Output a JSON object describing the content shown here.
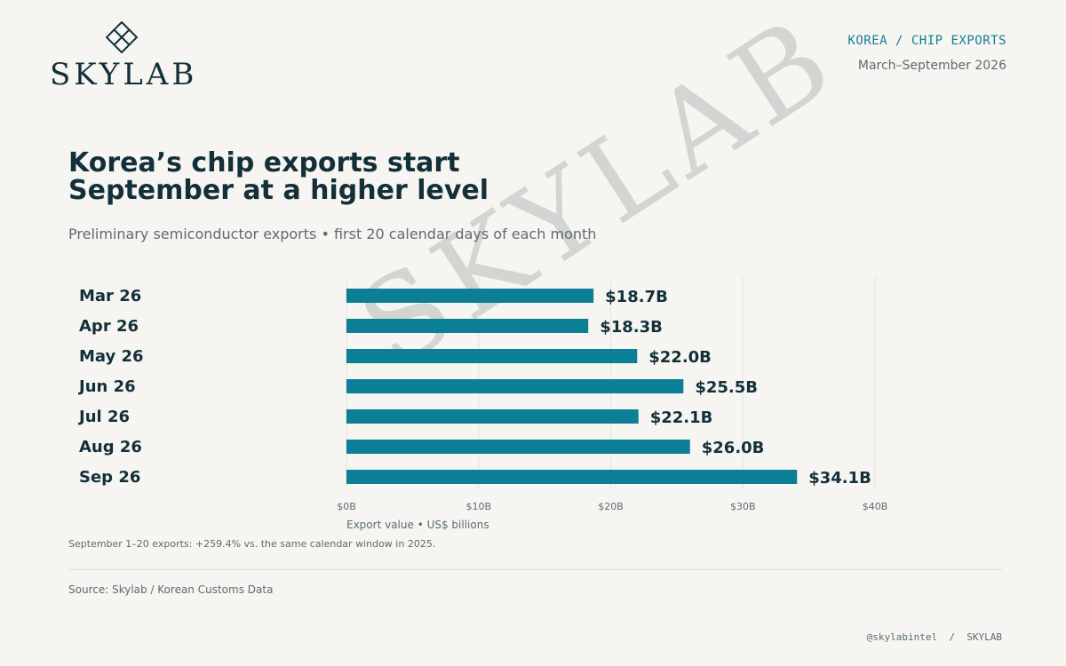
{
  "brand": {
    "name": "SKYLAB",
    "logo_icon": "diamond-lattice-icon"
  },
  "header": {
    "kicker": "KOREA / CHIP EXPORTS",
    "date_range": "March–September 2026"
  },
  "title": "Korea’s chip exports start\nSeptember at a higher level",
  "subtitle": "Preliminary semiconductor exports • first 20 calendar days of each month",
  "watermark": "SKYLAB",
  "note": "September 1–20 exports: +259.4% vs. the same calendar window in 2025.",
  "source": "Source: Skylab / Korean Customs Data",
  "footer_handle": "@skylabintel  /  SKYLAB",
  "colors": {
    "bar": "#0a7f95",
    "text": "#13303a",
    "muted": "#5d6b72",
    "grid": "#e3e3df",
    "background": "#f6f5f1"
  },
  "chart_data": {
    "type": "bar",
    "orientation": "horizontal",
    "categories": [
      "Mar 26",
      "Apr 26",
      "May 26",
      "Jun 26",
      "Jul 26",
      "Aug 26",
      "Sep 26"
    ],
    "values": [
      18.7,
      18.3,
      22.0,
      25.5,
      22.1,
      26.0,
      34.1
    ],
    "value_labels": [
      "$18.7B",
      "$18.3B",
      "$22.0B",
      "$25.5B",
      "$22.1B",
      "$26.0B",
      "$34.1B"
    ],
    "xlim": [
      0,
      40
    ],
    "x_ticks": [
      0,
      10,
      20,
      30,
      40
    ],
    "x_tick_labels": [
      "$0B",
      "$10B",
      "$20B",
      "$30B",
      "$40B"
    ],
    "xlabel": "Export value • US$ billions",
    "grid": true,
    "legend": "none"
  }
}
